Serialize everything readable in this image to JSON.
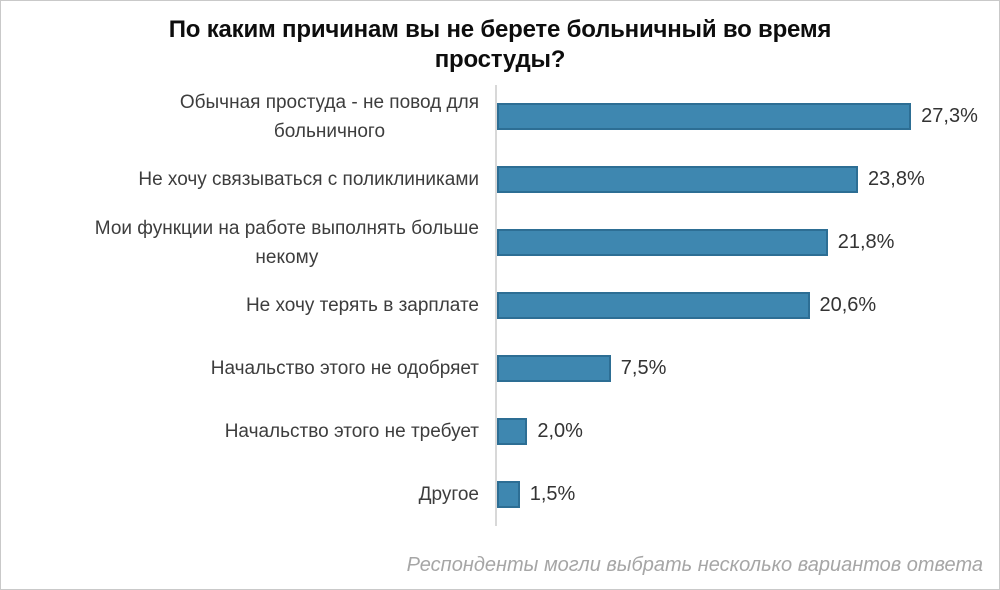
{
  "chart_data": {
    "type": "bar",
    "orientation": "horizontal",
    "title": "По каким причинам вы не берете больничный во время\nпростуды?",
    "footnote": "Респонденты могли выбрать несколько вариантов ответа",
    "categories": [
      "Обычная простуда - не повод для\nбольничного",
      "Не хочу связываться с поликлиниками",
      "Мои функции на работе выполнять больше\nнекому",
      "Не хочу терять в зарплате",
      "Начальство этого не одобряет",
      "Начальство этого не требует",
      "Другое"
    ],
    "values": [
      27.3,
      23.8,
      21.8,
      20.6,
      7.5,
      2.0,
      1.5
    ],
    "value_labels": [
      "27,3%",
      "23,8%",
      "21,8%",
      "20,6%",
      "7,5%",
      "2,0%",
      "1,5%"
    ],
    "xlim": [
      0,
      30
    ],
    "grid": false,
    "legend": false,
    "colors": {
      "bar_fill": "#3e87b0",
      "bar_border": "#2d6e94",
      "axis_line": "#d8d8d8",
      "title_text": "#0d0d0d",
      "label_text": "#3d3d3d",
      "footnote_text": "#a6a6a6"
    }
  }
}
